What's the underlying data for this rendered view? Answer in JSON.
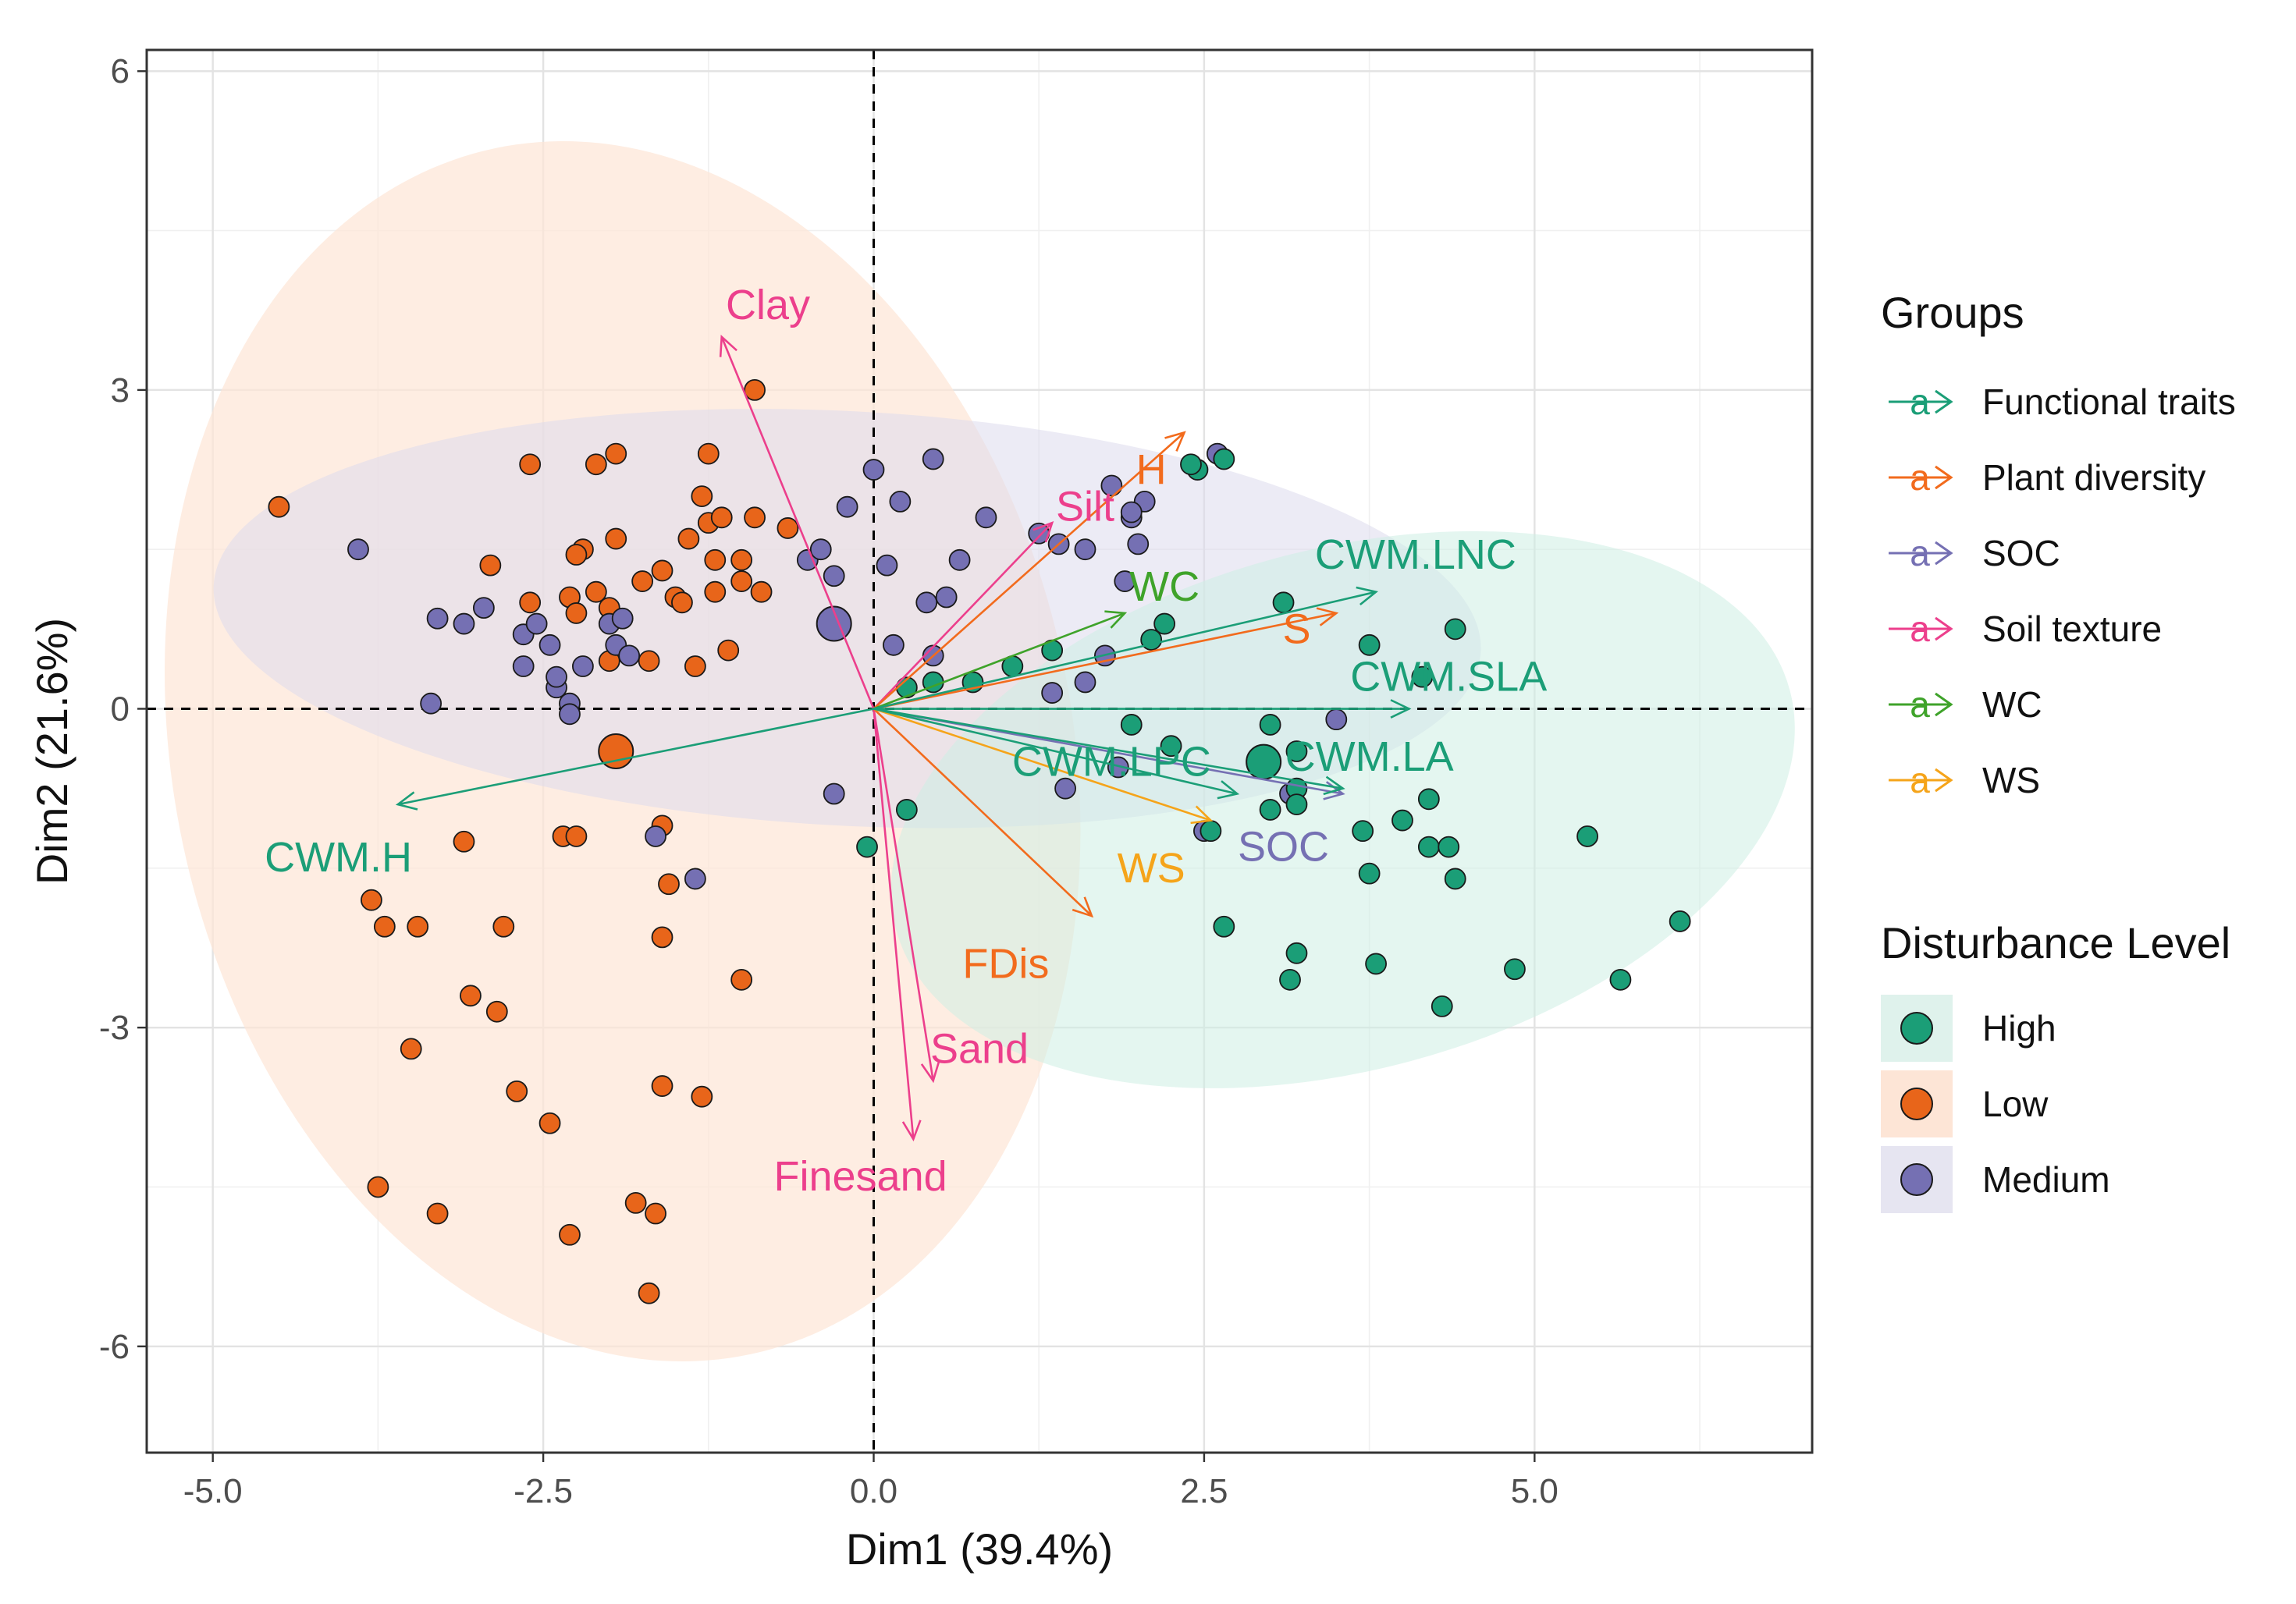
{
  "chart_data": {
    "type": "scatter",
    "subtype": "pca-biplot",
    "title": "",
    "xlabel": "Dim1 (39.4%)",
    "ylabel": "Dim2 (21.6%)",
    "xlim": [
      -5.5,
      7.1
    ],
    "ylim": [
      -7.0,
      6.2
    ],
    "x_ticks": [
      -5.0,
      -2.5,
      0.0,
      2.5,
      5.0
    ],
    "x_tick_labels": [
      "-5.0",
      "-2.5",
      "0.0",
      "2.5",
      "5.0"
    ],
    "y_ticks": [
      6,
      3,
      0,
      -3,
      -6
    ],
    "y_tick_labels": [
      "6",
      "3",
      "0",
      "-3",
      "-6"
    ],
    "grid": true,
    "legend_position": "right",
    "legend_groups": {
      "title": "Groups",
      "items": [
        {
          "name": "Functional traits",
          "color": "#1b9e77",
          "glyph": "a"
        },
        {
          "name": "Plant diversity",
          "color": "#f26b1d",
          "glyph": "a"
        },
        {
          "name": "SOC",
          "color": "#7570b3",
          "glyph": "a"
        },
        {
          "name": "Soil texture",
          "color": "#ec3f8c",
          "glyph": "a"
        },
        {
          "name": "WC",
          "color": "#3fa32a",
          "glyph": "a"
        },
        {
          "name": "WS",
          "color": "#f5a41a",
          "glyph": "a"
        }
      ]
    },
    "legend_levels": {
      "title": "Disturbance Level",
      "items": [
        {
          "name": "High",
          "fill": "#1b9e77",
          "bg": "#dff2ec"
        },
        {
          "name": "Low",
          "fill": "#e8651a",
          "bg": "#fde5d6"
        },
        {
          "name": "Medium",
          "fill": "#7570b3",
          "bg": "#e6e5f1"
        }
      ]
    },
    "ellipses": [
      {
        "group": "Low",
        "center": [
          -1.9,
          -0.4
        ],
        "rx": 3.4,
        "ry": 5.8,
        "angle_deg": -12,
        "fill": "#fde5d6",
        "opacity": 0.7
      },
      {
        "group": "Medium",
        "center": [
          -0.2,
          0.85
        ],
        "rx": 4.8,
        "ry": 1.95,
        "angle_deg": 3,
        "fill": "#dcdbed",
        "opacity": 0.55
      },
      {
        "group": "High",
        "center": [
          3.55,
          -0.95
        ],
        "rx": 3.5,
        "ry": 2.45,
        "angle_deg": -15,
        "fill": "#cdeee3",
        "opacity": 0.55
      }
    ],
    "centroids": [
      {
        "group": "Low",
        "x": -1.95,
        "y": -0.4
      },
      {
        "group": "Medium",
        "x": -0.3,
        "y": 0.8
      },
      {
        "group": "High",
        "x": 2.95,
        "y": -0.5
      }
    ],
    "arrows": [
      {
        "label": "Clay",
        "group": "Soil texture",
        "x": -1.15,
        "y": 3.5,
        "lx": -0.8,
        "ly": 3.8
      },
      {
        "label": "Silt",
        "group": "Soil texture",
        "x": 1.35,
        "y": 1.75,
        "lx": 1.6,
        "ly": 1.9
      },
      {
        "label": "Sand",
        "group": "Soil texture",
        "x": 0.45,
        "y": -3.5,
        "lx": 0.8,
        "ly": -3.2
      },
      {
        "label": "Finesand",
        "group": "Soil texture",
        "x": 0.3,
        "y": -4.05,
        "lx": -0.1,
        "ly": -4.4
      },
      {
        "label": "H",
        "group": "Plant diversity",
        "x": 2.35,
        "y": 2.6,
        "lx": 2.1,
        "ly": 2.25
      },
      {
        "label": "S",
        "group": "Plant diversity",
        "x": 3.5,
        "y": 0.9,
        "lx": 3.2,
        "ly": 0.75
      },
      {
        "label": "FDis",
        "group": "Plant diversity",
        "x": 1.65,
        "y": -1.95,
        "lx": 1.0,
        "ly": -2.4
      },
      {
        "label": "WC",
        "group": "WC",
        "x": 1.9,
        "y": 0.9,
        "lx": 2.2,
        "ly": 1.15
      },
      {
        "label": "WS",
        "group": "WS",
        "x": 2.55,
        "y": -1.05,
        "lx": 2.1,
        "ly": -1.5
      },
      {
        "label": "SOC",
        "group": "SOC",
        "x": 3.55,
        "y": -0.8,
        "lx": 3.1,
        "ly": -1.3
      },
      {
        "label": "CWM.LNC",
        "group": "Functional traits",
        "x": 3.8,
        "y": 1.1,
        "lx": 4.1,
        "ly": 1.45
      },
      {
        "label": "CWM.SLA",
        "group": "Functional traits",
        "x": 4.05,
        "y": 0.0,
        "lx": 4.35,
        "ly": 0.3
      },
      {
        "label": "CWM.LA",
        "group": "Functional traits",
        "x": 3.55,
        "y": -0.75,
        "lx": 3.75,
        "ly": -0.45
      },
      {
        "label": "CWM.LPC",
        "group": "Functional traits",
        "x": 2.75,
        "y": -0.8,
        "lx": 1.8,
        "ly": -0.5
      },
      {
        "label": "CWM.H",
        "group": "Functional traits",
        "x": -3.6,
        "y": -0.9,
        "lx": -4.05,
        "ly": -1.4
      }
    ],
    "points": {
      "Low": [
        [
          -4.5,
          1.9
        ],
        [
          -2.6,
          2.3
        ],
        [
          -2.1,
          2.3
        ],
        [
          -1.95,
          2.4
        ],
        [
          -1.25,
          2.4
        ],
        [
          -0.9,
          3.0
        ],
        [
          -1.3,
          2.0
        ],
        [
          -1.25,
          1.75
        ],
        [
          -1.15,
          1.8
        ],
        [
          -0.9,
          1.8
        ],
        [
          -0.65,
          1.7
        ],
        [
          -2.2,
          1.5
        ],
        [
          -2.25,
          1.45
        ],
        [
          -1.95,
          1.6
        ],
        [
          -1.6,
          1.3
        ],
        [
          -1.4,
          1.6
        ],
        [
          -1.2,
          1.4
        ],
        [
          -1.0,
          1.4
        ],
        [
          -2.9,
          1.35
        ],
        [
          -1.75,
          1.2
        ],
        [
          -1.5,
          1.05
        ],
        [
          -1.2,
          1.1
        ],
        [
          -1.0,
          1.2
        ],
        [
          -0.85,
          1.1
        ],
        [
          -2.6,
          1.0
        ],
        [
          -2.3,
          1.05
        ],
        [
          -2.1,
          1.1
        ],
        [
          -2.0,
          0.95
        ],
        [
          -1.45,
          1.0
        ],
        [
          -2.25,
          0.9
        ],
        [
          -1.7,
          0.45
        ],
        [
          -1.35,
          0.4
        ],
        [
          -1.1,
          0.55
        ],
        [
          -2.0,
          0.45
        ],
        [
          -3.1,
          -1.25
        ],
        [
          -2.35,
          -1.2
        ],
        [
          -2.25,
          -1.2
        ],
        [
          -1.6,
          -1.1
        ],
        [
          -1.55,
          -1.65
        ],
        [
          -3.8,
          -1.8
        ],
        [
          -3.7,
          -2.05
        ],
        [
          -3.45,
          -2.05
        ],
        [
          -2.8,
          -2.05
        ],
        [
          -1.6,
          -2.15
        ],
        [
          -3.05,
          -2.7
        ],
        [
          -2.85,
          -2.85
        ],
        [
          -1.0,
          -2.55
        ],
        [
          -3.5,
          -3.2
        ],
        [
          -2.7,
          -3.6
        ],
        [
          -1.6,
          -3.55
        ],
        [
          -1.3,
          -3.65
        ],
        [
          -2.45,
          -3.9
        ],
        [
          -3.75,
          -4.5
        ],
        [
          -3.3,
          -4.75
        ],
        [
          -2.3,
          -4.95
        ],
        [
          -1.8,
          -4.65
        ],
        [
          -1.65,
          -4.75
        ],
        [
          -1.7,
          -5.5
        ]
      ],
      "Medium": [
        [
          -3.9,
          1.5
        ],
        [
          -3.3,
          0.85
        ],
        [
          -3.1,
          0.8
        ],
        [
          -2.95,
          0.95
        ],
        [
          -3.35,
          0.05
        ],
        [
          -2.65,
          0.7
        ],
        [
          -2.55,
          0.8
        ],
        [
          -2.45,
          0.6
        ],
        [
          -2.4,
          0.2
        ],
        [
          -2.4,
          0.3
        ],
        [
          -2.65,
          0.4
        ],
        [
          -2.3,
          0.05
        ],
        [
          -2.3,
          -0.05
        ],
        [
          -1.95,
          0.6
        ],
        [
          -2.0,
          0.8
        ],
        [
          -1.9,
          0.85
        ],
        [
          -1.85,
          0.5
        ],
        [
          -2.2,
          0.4
        ],
        [
          -1.65,
          -1.2
        ],
        [
          -1.35,
          -1.6
        ],
        [
          -0.5,
          1.4
        ],
        [
          -0.4,
          1.5
        ],
        [
          -0.3,
          1.25
        ],
        [
          -0.2,
          1.9
        ],
        [
          0.0,
          2.25
        ],
        [
          0.2,
          1.95
        ],
        [
          0.45,
          2.35
        ],
        [
          0.1,
          1.35
        ],
        [
          0.4,
          1.0
        ],
        [
          0.55,
          1.05
        ],
        [
          0.15,
          0.6
        ],
        [
          0.45,
          0.5
        ],
        [
          0.65,
          1.4
        ],
        [
          0.85,
          1.8
        ],
        [
          1.25,
          1.65
        ],
        [
          1.4,
          1.55
        ],
        [
          1.6,
          1.5
        ],
        [
          1.8,
          2.1
        ],
        [
          1.95,
          1.8
        ],
        [
          2.05,
          1.95
        ],
        [
          2.0,
          1.55
        ],
        [
          2.6,
          2.4
        ],
        [
          1.95,
          1.85
        ],
        [
          1.9,
          1.2
        ],
        [
          1.75,
          0.5
        ],
        [
          1.6,
          0.25
        ],
        [
          1.35,
          0.15
        ],
        [
          1.85,
          -0.55
        ],
        [
          1.45,
          -0.75
        ],
        [
          -0.3,
          -0.8
        ],
        [
          3.5,
          -0.1
        ],
        [
          3.15,
          -0.8
        ],
        [
          2.5,
          -1.15
        ]
      ],
      "High": [
        [
          2.45,
          2.25
        ],
        [
          2.4,
          2.3
        ],
        [
          2.65,
          2.35
        ],
        [
          2.2,
          0.8
        ],
        [
          2.1,
          0.65
        ],
        [
          1.35,
          0.55
        ],
        [
          1.05,
          0.4
        ],
        [
          0.75,
          0.25
        ],
        [
          0.45,
          0.25
        ],
        [
          0.25,
          0.2
        ],
        [
          1.95,
          -0.15
        ],
        [
          2.25,
          -0.35
        ],
        [
          3.1,
          1.0
        ],
        [
          3.75,
          0.6
        ],
        [
          4.4,
          0.75
        ],
        [
          4.15,
          0.3
        ],
        [
          3.0,
          -0.15
        ],
        [
          3.2,
          -0.4
        ],
        [
          3.2,
          -0.75
        ],
        [
          3.2,
          -0.9
        ],
        [
          3.0,
          -0.95
        ],
        [
          4.2,
          -0.85
        ],
        [
          4.0,
          -1.05
        ],
        [
          3.7,
          -1.15
        ],
        [
          3.75,
          -1.55
        ],
        [
          4.2,
          -1.3
        ],
        [
          4.35,
          -1.3
        ],
        [
          4.4,
          -1.6
        ],
        [
          5.4,
          -1.2
        ],
        [
          6.1,
          -2.0
        ],
        [
          2.65,
          -2.05
        ],
        [
          3.2,
          -2.3
        ],
        [
          3.15,
          -2.55
        ],
        [
          3.8,
          -2.4
        ],
        [
          4.85,
          -2.45
        ],
        [
          5.65,
          -2.55
        ],
        [
          4.3,
          -2.8
        ],
        [
          2.55,
          -1.15
        ],
        [
          0.25,
          -0.95
        ],
        [
          -0.05,
          -1.3
        ]
      ]
    }
  }
}
